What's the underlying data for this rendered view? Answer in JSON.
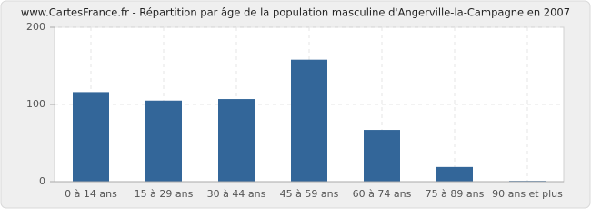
{
  "chart_data": {
    "type": "bar",
    "title": "www.CartesFrance.fr - Répartition par âge de la population masculine d'Angerville-la-Campagne en 2007",
    "categories": [
      "0 à 14 ans",
      "15 à 29 ans",
      "30 à 44 ans",
      "45 à 59 ans",
      "60 à 74 ans",
      "75 à 89 ans",
      "90 ans et plus"
    ],
    "values": [
      116,
      105,
      107,
      158,
      67,
      19,
      1
    ],
    "color": "#336699",
    "ylim": [
      0,
      200
    ],
    "yticks": [
      0,
      100,
      200
    ],
    "grid": true
  }
}
